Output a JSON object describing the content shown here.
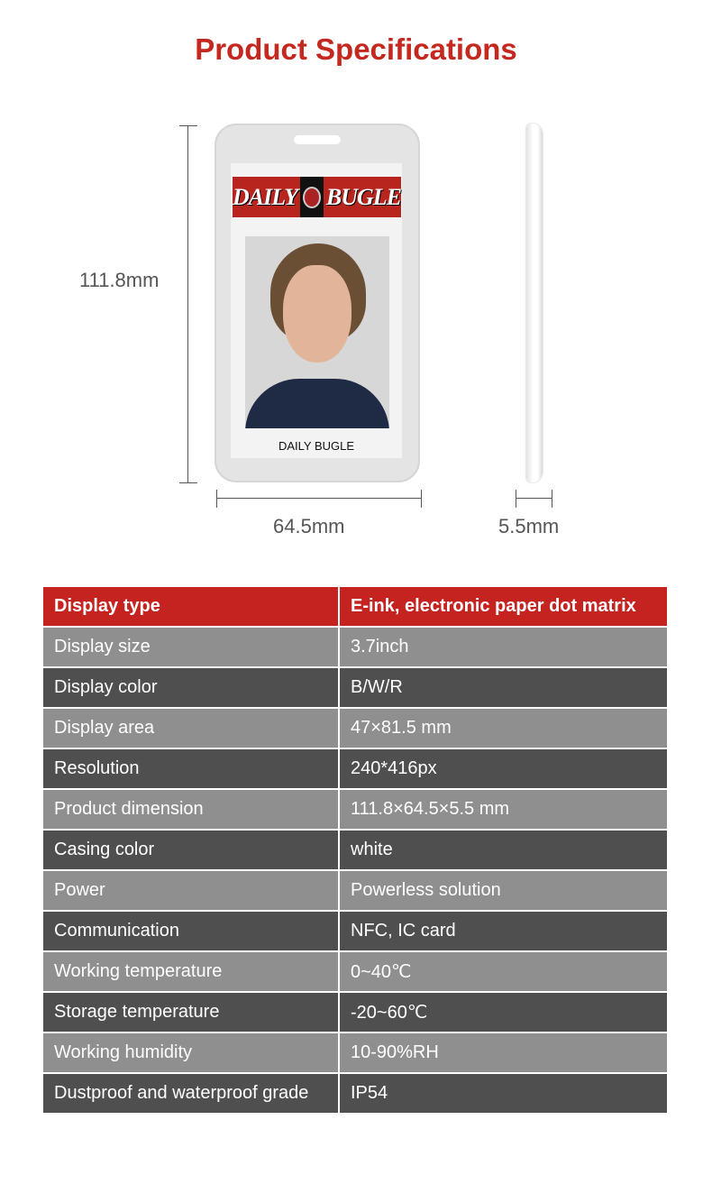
{
  "title": "Product Specifications",
  "device": {
    "banner_left": "DAILY",
    "banner_right": "BUGLE",
    "caption": "DAILY BUGLE",
    "height_label": "111.8mm",
    "width_label": "64.5mm",
    "thickness_label": "5.5mm",
    "casing_color": "#e4e4e4"
  },
  "colors": {
    "accent": "#c4231f",
    "row_light": "#8f8f8f",
    "row_dark": "#4f4f4f"
  },
  "specs": [
    {
      "label": "Display type",
      "value": "E-ink, electronic paper dot matrix"
    },
    {
      "label": "Display size",
      "value": "3.7inch"
    },
    {
      "label": "Display color",
      "value": "B/W/R"
    },
    {
      "label": "Display area",
      "value": "47×81.5 mm"
    },
    {
      "label": "Resolution",
      "value": "240*416px"
    },
    {
      "label": "Product dimension",
      "value": "111.8×64.5×5.5 mm"
    },
    {
      "label": "Casing color",
      "value": "white"
    },
    {
      "label": "Power",
      "value": "Powerless solution"
    },
    {
      "label": "Communication",
      "value": "NFC, IC card"
    },
    {
      "label": "Working temperature",
      "value": "0~40℃"
    },
    {
      "label": "Storage temperature",
      "value": "-20~60℃"
    },
    {
      "label": "Working humidity",
      "value": "10-90%RH"
    },
    {
      "label": "Dustproof and waterproof grade",
      "value": "IP54"
    }
  ]
}
